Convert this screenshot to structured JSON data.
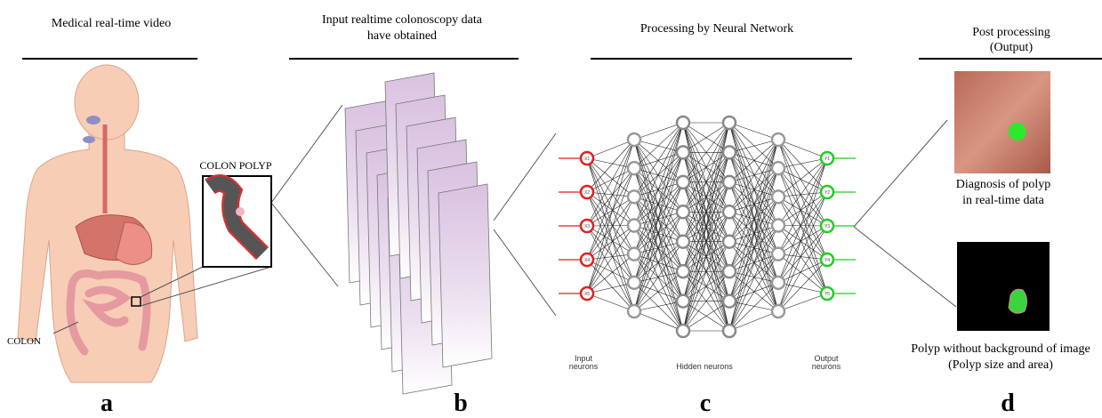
{
  "panels": [
    {
      "title_lines": [
        "Medical real-time video"
      ],
      "letter": "a"
    },
    {
      "title_lines": [
        "Input realtime colonoscopy data",
        "have obtained"
      ],
      "letter": "b"
    },
    {
      "title_lines": [
        "Processing by Neural Network"
      ],
      "letter": "c"
    },
    {
      "title_lines": [
        "Post processing",
        "(Output)"
      ],
      "letter": "d"
    }
  ],
  "anatomy": {
    "polyp_label": "COLON POLYP",
    "colon_label": "COLON"
  },
  "network": {
    "inputs": [
      "X1",
      "X2",
      "X3",
      "X4",
      "X5"
    ],
    "outputs": [
      "Y1",
      "Y2",
      "Y3",
      "Y4",
      "Y5"
    ],
    "input_caption": [
      "Input",
      "neurons"
    ],
    "hidden_caption": "Hidden neurons",
    "output_caption": [
      "Output",
      "neurons"
    ]
  },
  "results": {
    "top_caption": [
      "Diagnosis of polyp",
      "in real-time data"
    ],
    "bottom_caption": [
      "Polyp without background of image",
      "(Polyp size and area)"
    ]
  }
}
